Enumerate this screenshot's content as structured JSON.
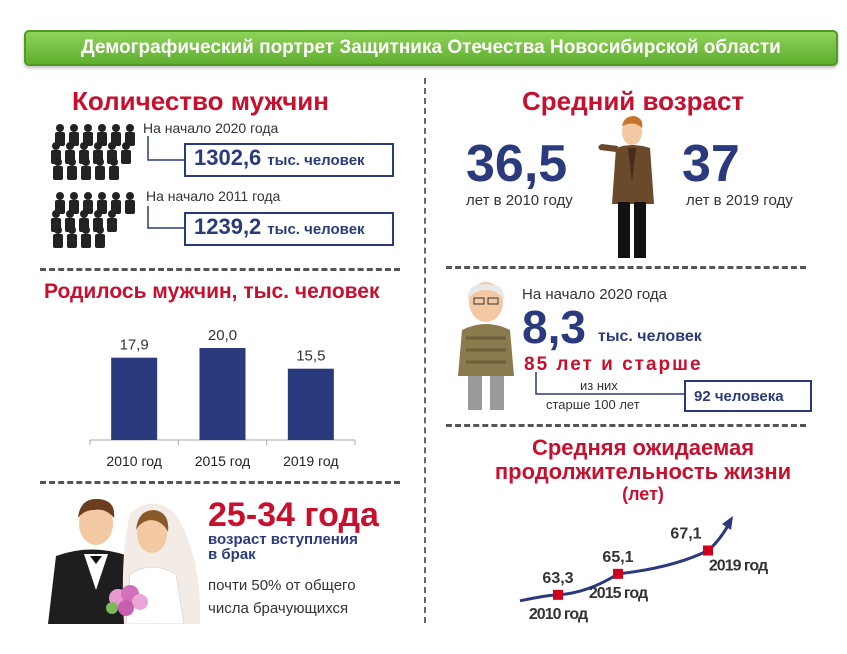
{
  "header": {
    "title": "Демографический портрет Защитника Отечества Новосибирской области"
  },
  "men_count": {
    "title": "Количество мужчин",
    "items": [
      {
        "label": "На начало 2020 года",
        "value": "1302,6",
        "unit": "тыс. человек"
      },
      {
        "label": "На начало 2011 года",
        "value": "1239,2",
        "unit": "тыс. человек"
      }
    ]
  },
  "avg_age": {
    "title": "Средний возраст",
    "left_value": "36,5",
    "left_caption": "лет в 2010 году",
    "right_value": "37",
    "right_caption": "лет в 2019 году"
  },
  "elderly": {
    "date_label": "На начало 2020 года",
    "value": "8,3",
    "unit": "тыс. человек",
    "age_label": "85 лет и старше",
    "sub_label_1": "из них",
    "sub_label_2": "старше 100 лет",
    "centenarians": "92 человека"
  },
  "marriage": {
    "age_range": "25-34 года",
    "caption_1": "возраст вступления",
    "caption_2": "в брак",
    "note_1": "почти 50% от общего",
    "note_2": "числа брачующихся"
  },
  "colors": {
    "red": "#c8102e",
    "navy": "#2b3a7d",
    "green": "#5fae2e"
  },
  "icons": [
    "soldiers-crowd-icon",
    "man-in-suit-icon",
    "elderly-man-icon",
    "wedding-couple-icon"
  ],
  "chart_data": [
    {
      "type": "bar",
      "title": "Родилось мужчин, тыс. человек",
      "categories": [
        "2010 год",
        "2015 год",
        "2019 год"
      ],
      "values": [
        17.9,
        20.0,
        15.5
      ],
      "value_labels": [
        "17,9",
        "20,0",
        "15,5"
      ],
      "ylim": [
        0,
        25
      ],
      "color": "#2b3a7d"
    },
    {
      "type": "line",
      "title": "Средняя ожидаемая продолжительность жизни",
      "subtitle": "(лет)",
      "categories": [
        "2010 год",
        "2015 год",
        "2019 год"
      ],
      "values": [
        63.3,
        65.1,
        67.1
      ],
      "value_labels": [
        "63,3",
        "65,1",
        "67,1"
      ],
      "ylim": [
        62,
        68
      ],
      "line_color": "#2b3a7d",
      "marker_color": "#d0021b"
    }
  ]
}
